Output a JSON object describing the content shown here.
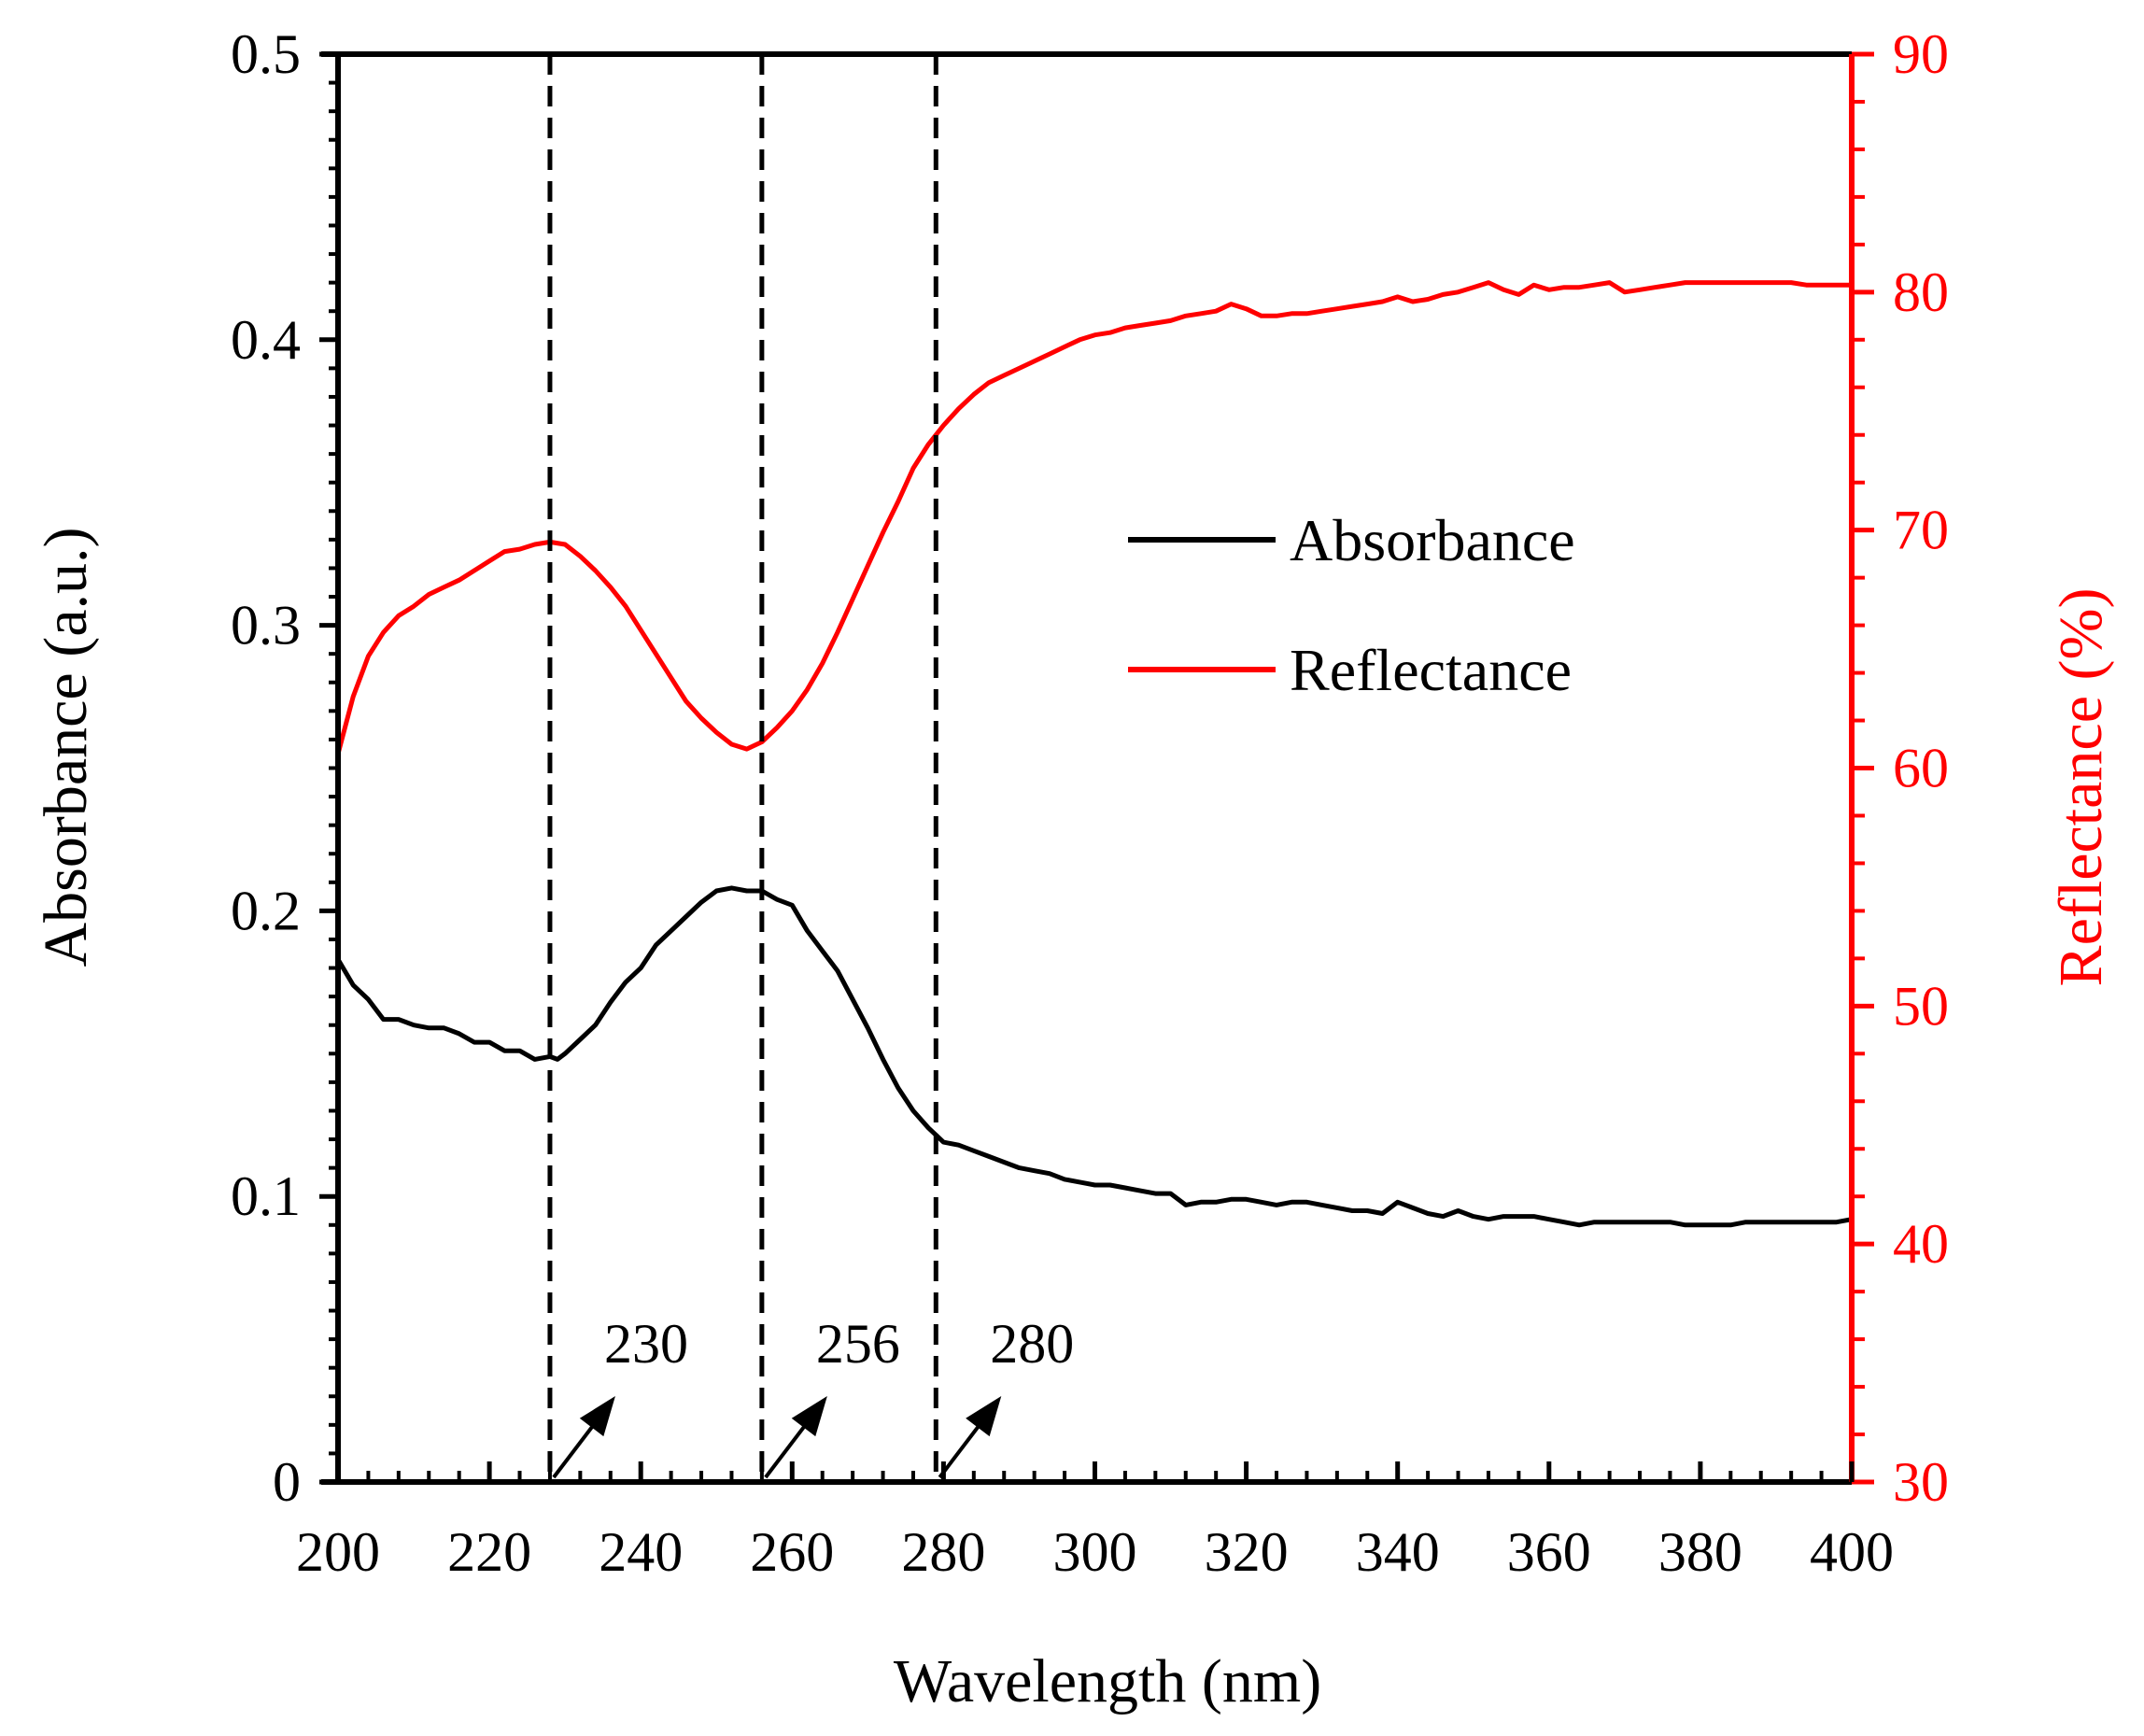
{
  "chart_data": {
    "type": "line",
    "title": "",
    "xlabel": "Wavelength (nm)",
    "ylabel": "Absorbance (a.u.)",
    "y2label": "Reflectance (%)",
    "xlim": [
      200,
      400
    ],
    "ylim": [
      0,
      0.5
    ],
    "y2lim": [
      30,
      90
    ],
    "x_ticks": [
      200,
      220,
      240,
      260,
      280,
      300,
      320,
      340,
      360,
      380,
      400
    ],
    "x_tick_labels": [
      "200",
      "220",
      "240",
      "260",
      "280",
      "300",
      "320",
      "340",
      "360",
      "380",
      "400"
    ],
    "y_ticks": [
      0,
      0.1,
      0.2,
      0.3,
      0.4,
      0.5
    ],
    "y_tick_labels": [
      "0",
      "0.1",
      "0.2",
      "0.3",
      "0.4",
      "0.5"
    ],
    "y2_ticks": [
      30,
      40,
      50,
      60,
      70,
      80,
      90
    ],
    "y2_tick_labels": [
      "30",
      "40",
      "50",
      "60",
      "70",
      "80",
      "90"
    ],
    "legend": {
      "position": "center-right",
      "entries": [
        "Absorbance",
        "Reflectance"
      ]
    },
    "grid": false,
    "series": [
      {
        "name": "Absorbance",
        "axis": "left",
        "color": "#000000",
        "x": [
          200,
          202,
          204,
          206,
          208,
          210,
          212,
          214,
          216,
          218,
          220,
          222,
          224,
          226,
          228,
          229,
          230,
          232,
          234,
          236,
          238,
          240,
          242,
          244,
          246,
          248,
          250,
          252,
          254,
          256,
          258,
          260,
          262,
          264,
          266,
          268,
          270,
          272,
          274,
          276,
          278,
          280,
          282,
          284,
          286,
          288,
          290,
          292,
          294,
          296,
          298,
          300,
          302,
          304,
          306,
          308,
          310,
          312,
          314,
          316,
          318,
          320,
          322,
          324,
          326,
          328,
          330,
          332,
          334,
          336,
          338,
          340,
          342,
          344,
          346,
          348,
          350,
          352,
          354,
          356,
          358,
          360,
          362,
          364,
          366,
          368,
          370,
          372,
          374,
          376,
          378,
          380,
          382,
          384,
          386,
          388,
          390,
          392,
          394,
          396,
          398,
          400
        ],
        "values": [
          0.183,
          0.174,
          0.169,
          0.162,
          0.162,
          0.16,
          0.159,
          0.159,
          0.157,
          0.154,
          0.154,
          0.151,
          0.151,
          0.148,
          0.149,
          0.148,
          0.15,
          0.155,
          0.16,
          0.168,
          0.175,
          0.18,
          0.188,
          0.193,
          0.198,
          0.203,
          0.207,
          0.208,
          0.207,
          0.207,
          0.204,
          0.202,
          0.193,
          0.186,
          0.179,
          0.169,
          0.159,
          0.148,
          0.138,
          0.13,
          0.124,
          0.119,
          0.118,
          0.116,
          0.114,
          0.112,
          0.11,
          0.109,
          0.108,
          0.106,
          0.105,
          0.104,
          0.104,
          0.103,
          0.102,
          0.101,
          0.101,
          0.097,
          0.098,
          0.098,
          0.099,
          0.099,
          0.098,
          0.097,
          0.098,
          0.098,
          0.097,
          0.096,
          0.095,
          0.095,
          0.094,
          0.098,
          0.096,
          0.094,
          0.093,
          0.095,
          0.093,
          0.092,
          0.093,
          0.093,
          0.093,
          0.092,
          0.091,
          0.09,
          0.091,
          0.091,
          0.091,
          0.091,
          0.091,
          0.091,
          0.09,
          0.09,
          0.09,
          0.09,
          0.091,
          0.091,
          0.091,
          0.091,
          0.091,
          0.091,
          0.091,
          0.092
        ]
      },
      {
        "name": "Reflectance",
        "axis": "right",
        "color": "#ff0000",
        "x": [
          200,
          202,
          204,
          206,
          208,
          210,
          212,
          214,
          216,
          218,
          220,
          222,
          224,
          226,
          228,
          230,
          232,
          234,
          236,
          238,
          240,
          242,
          244,
          246,
          248,
          250,
          252,
          254,
          256,
          258,
          260,
          262,
          264,
          266,
          268,
          270,
          272,
          274,
          276,
          278,
          280,
          282,
          284,
          286,
          288,
          290,
          292,
          294,
          296,
          298,
          300,
          302,
          304,
          306,
          308,
          310,
          312,
          314,
          316,
          318,
          320,
          322,
          324,
          326,
          328,
          330,
          332,
          334,
          336,
          338,
          340,
          342,
          344,
          346,
          348,
          350,
          352,
          354,
          356,
          358,
          360,
          362,
          364,
          366,
          368,
          370,
          372,
          374,
          376,
          378,
          380,
          382,
          384,
          386,
          388,
          390,
          392,
          394,
          396,
          398,
          400
        ],
        "values": [
          60.6,
          63,
          64.7,
          65.7,
          66.4,
          66.8,
          67.3,
          67.6,
          67.9,
          68.3,
          68.7,
          69.1,
          69.2,
          69.4,
          69.5,
          69.4,
          68.9,
          68.3,
          67.6,
          66.8,
          65.8,
          64.8,
          63.8,
          62.8,
          62.1,
          61.5,
          61,
          60.8,
          61.1,
          61.7,
          62.4,
          63.3,
          64.4,
          65.7,
          67.1,
          68.5,
          69.9,
          71.2,
          72.6,
          73.6,
          74.4,
          75.1,
          75.7,
          76.2,
          76.5,
          76.8,
          77.1,
          77.4,
          77.7,
          78,
          78.2,
          78.3,
          78.5,
          78.6,
          78.7,
          78.8,
          79,
          79.1,
          79.2,
          79.5,
          79.3,
          79,
          79,
          79.1,
          79.1,
          79.2,
          79.3,
          79.4,
          79.5,
          79.6,
          79.8,
          79.6,
          79.7,
          79.9,
          80,
          80.2,
          80.4,
          80.1,
          79.9,
          80.3,
          80.1,
          80.2,
          80.2,
          80.3,
          80.4,
          80,
          80.1,
          80.2,
          80.3,
          80.4,
          80.4,
          80.4,
          80.4,
          80.4,
          80.4,
          80.4,
          80.4,
          80.3,
          80.3,
          80.3,
          80.3
        ]
      }
    ],
    "vertical_markers": [
      {
        "x": 228,
        "label": "230"
      },
      {
        "x": 256,
        "label": "256"
      },
      {
        "x": 279,
        "label": "280"
      }
    ]
  }
}
